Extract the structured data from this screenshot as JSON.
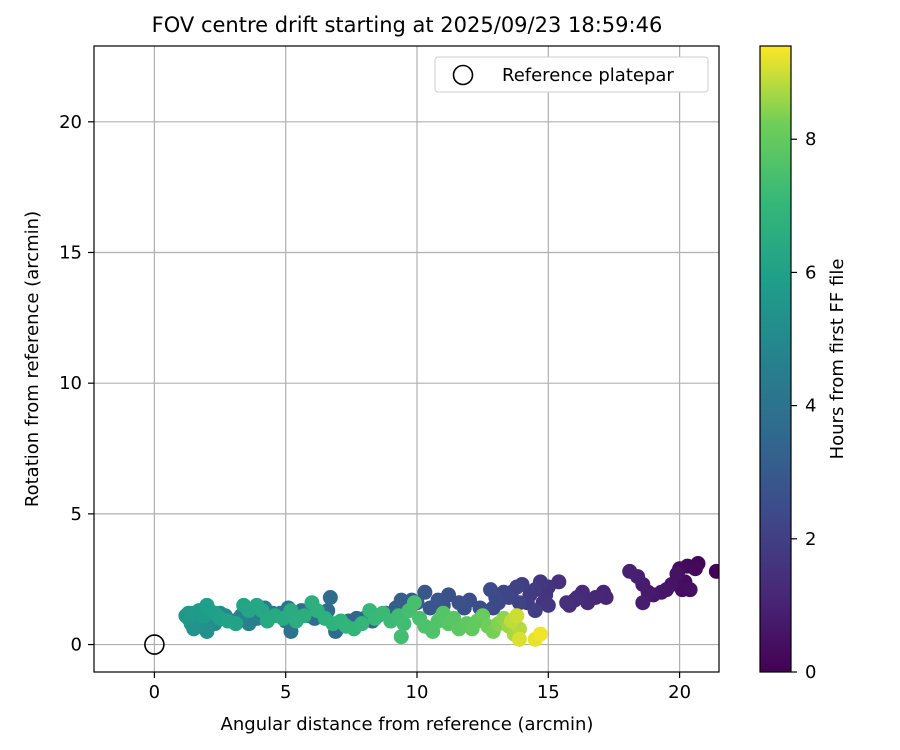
{
  "chart_data": {
    "type": "scatter",
    "title": "FOV centre drift starting at 2025/09/23 18:59:46",
    "xlabel": "Angular distance from reference (arcmin)",
    "ylabel": "Rotation from reference (arcmin)",
    "xlim": [
      -2.3,
      21.5
    ],
    "ylim": [
      -1.05,
      22.9
    ],
    "xticks": [
      "0",
      "5",
      "10",
      "15",
      "20"
    ],
    "yticks": [
      "0",
      "5",
      "10",
      "15",
      "20"
    ],
    "grid": true,
    "legend": {
      "position": "top-right",
      "entries": [
        "Reference platepar"
      ]
    },
    "reference_point": {
      "x": 0,
      "y": 0
    },
    "colorbar": {
      "label": "Hours from first FF file",
      "colormap": "viridis",
      "range": [
        0,
        9.4
      ],
      "ticks": [
        "0",
        "2",
        "4",
        "6",
        "8"
      ]
    },
    "points": [
      [
        21.4,
        2.8,
        0.05
      ],
      [
        20.7,
        3.1,
        0.15
      ],
      [
        20.6,
        2.9,
        0.2
      ],
      [
        20.3,
        3.0,
        0.25
      ],
      [
        20.0,
        2.9,
        0.3
      ],
      [
        20.2,
        2.4,
        0.35
      ],
      [
        20.1,
        2.1,
        0.4
      ],
      [
        20.4,
        2.1,
        0.45
      ],
      [
        19.9,
        2.7,
        0.5
      ],
      [
        19.7,
        2.3,
        0.55
      ],
      [
        19.5,
        2.1,
        0.6
      ],
      [
        19.3,
        2.0,
        0.65
      ],
      [
        19.0,
        1.9,
        0.7
      ],
      [
        18.8,
        2.0,
        0.75
      ],
      [
        18.6,
        2.3,
        0.8
      ],
      [
        18.6,
        1.6,
        0.85
      ],
      [
        18.4,
        2.6,
        0.9
      ],
      [
        18.1,
        2.8,
        0.95
      ],
      [
        17.1,
        2.0,
        1.05
      ],
      [
        17.2,
        1.8,
        1.1
      ],
      [
        16.8,
        1.8,
        1.15
      ],
      [
        16.5,
        1.6,
        1.2
      ],
      [
        16.3,
        2.0,
        1.25
      ],
      [
        16.1,
        1.8,
        1.3
      ],
      [
        16.0,
        1.7,
        1.35
      ],
      [
        15.8,
        1.5,
        1.4
      ],
      [
        15.7,
        1.6,
        1.45
      ],
      [
        15.4,
        2.4,
        1.5
      ],
      [
        15.0,
        2.2,
        1.55
      ],
      [
        14.9,
        1.9,
        1.6
      ],
      [
        14.8,
        1.6,
        1.65
      ],
      [
        15.0,
        1.5,
        1.7
      ],
      [
        14.7,
        2.4,
        1.75
      ],
      [
        14.5,
        2.1,
        1.8
      ],
      [
        14.3,
        1.9,
        1.85
      ],
      [
        14.2,
        1.6,
        1.9
      ],
      [
        14.5,
        1.3,
        1.95
      ],
      [
        14.0,
        2.3,
        2.0
      ],
      [
        13.8,
        2.2,
        2.05
      ],
      [
        13.6,
        2.0,
        2.1
      ],
      [
        13.9,
        1.6,
        2.15
      ],
      [
        13.5,
        1.8,
        2.2
      ],
      [
        13.3,
        2.0,
        2.25
      ],
      [
        13.1,
        1.6,
        2.3
      ],
      [
        12.9,
        1.4,
        2.35
      ],
      [
        13.0,
        1.8,
        2.4
      ],
      [
        12.8,
        2.1,
        2.45
      ],
      [
        12.4,
        1.4,
        2.5
      ],
      [
        12.0,
        1.7,
        2.55
      ],
      [
        11.8,
        1.4,
        2.6
      ],
      [
        11.6,
        1.6,
        2.65
      ],
      [
        11.2,
        1.9,
        2.7
      ],
      [
        11.0,
        1.5,
        2.75
      ],
      [
        10.8,
        1.7,
        2.8
      ],
      [
        10.5,
        1.4,
        2.85
      ],
      [
        10.3,
        2.0,
        2.9
      ],
      [
        10.0,
        1.6,
        2.95
      ],
      [
        9.8,
        1.7,
        3.0
      ],
      [
        9.6,
        1.5,
        3.05
      ],
      [
        9.4,
        1.7,
        3.1
      ],
      [
        9.2,
        1.4,
        3.15
      ],
      [
        8.8,
        1.2,
        3.25
      ],
      [
        8.5,
        1.1,
        3.3
      ],
      [
        8.3,
        0.9,
        3.35
      ],
      [
        8.0,
        1.0,
        3.4
      ],
      [
        7.7,
        1.0,
        3.45
      ],
      [
        7.4,
        0.9,
        3.5
      ],
      [
        7.1,
        0.7,
        3.55
      ],
      [
        6.9,
        0.5,
        3.6
      ],
      [
        6.6,
        1.3,
        3.65
      ],
      [
        6.7,
        1.8,
        3.7
      ],
      [
        6.4,
        1.2,
        3.75
      ],
      [
        6.1,
        1.0,
        3.8
      ],
      [
        5.9,
        1.1,
        3.85
      ],
      [
        5.6,
        1.3,
        3.9
      ],
      [
        5.4,
        1.0,
        3.95
      ],
      [
        5.2,
        0.5,
        4.0
      ],
      [
        5.0,
        0.9,
        4.05
      ],
      [
        5.1,
        1.4,
        4.1
      ],
      [
        4.8,
        1.2,
        4.2
      ],
      [
        4.5,
        1.2,
        4.3
      ],
      [
        4.2,
        1.4,
        4.4
      ],
      [
        3.9,
        1.0,
        4.5
      ],
      [
        3.6,
        0.8,
        4.6
      ],
      [
        3.3,
        1.1,
        4.7
      ],
      [
        3.0,
        0.9,
        4.8
      ],
      [
        2.7,
        1.1,
        4.9
      ],
      [
        2.5,
        1.2,
        5.0
      ],
      [
        2.3,
        0.8,
        5.1
      ],
      [
        2.1,
        1.0,
        5.2
      ],
      [
        2.0,
        0.5,
        5.3
      ],
      [
        1.8,
        0.7,
        5.35
      ],
      [
        1.6,
        0.9,
        5.4
      ],
      [
        1.5,
        0.6,
        5.45
      ],
      [
        1.4,
        0.8,
        5.5
      ],
      [
        1.3,
        1.0,
        5.55
      ],
      [
        1.2,
        1.1,
        5.6
      ],
      [
        1.3,
        1.2,
        5.65
      ],
      [
        1.5,
        1.2,
        5.7
      ],
      [
        1.7,
        1.3,
        5.75
      ],
      [
        1.9,
        1.1,
        5.8
      ],
      [
        2.1,
        1.3,
        5.85
      ],
      [
        2.0,
        1.5,
        5.9
      ],
      [
        2.3,
        1.2,
        5.95
      ],
      [
        2.5,
        1.0,
        6.0
      ],
      [
        2.8,
        0.9,
        6.05
      ],
      [
        3.1,
        0.8,
        6.1
      ],
      [
        3.4,
        1.5,
        6.15
      ],
      [
        3.6,
        1.3,
        6.2
      ],
      [
        3.9,
        1.5,
        6.25
      ],
      [
        4.1,
        1.3,
        6.3
      ],
      [
        4.3,
        0.9,
        6.35
      ],
      [
        4.6,
        1.1,
        6.4
      ],
      [
        4.9,
        1.0,
        6.45
      ],
      [
        5.2,
        1.3,
        6.5
      ],
      [
        5.4,
        0.9,
        6.55
      ],
      [
        5.7,
        1.1,
        6.6
      ],
      [
        6.0,
        1.6,
        6.65
      ],
      [
        6.2,
        1.3,
        6.7
      ],
      [
        6.5,
        1.0,
        6.75
      ],
      [
        6.8,
        0.8,
        6.8
      ],
      [
        7.1,
        0.9,
        6.85
      ],
      [
        7.3,
        0.7,
        6.9
      ],
      [
        7.6,
        0.6,
        6.95
      ],
      [
        7.9,
        0.8,
        7.0
      ],
      [
        8.2,
        1.3,
        7.05
      ],
      [
        8.4,
        1.0,
        7.1
      ],
      [
        8.7,
        1.2,
        7.15
      ],
      [
        9.0,
        0.9,
        7.2
      ],
      [
        9.3,
        1.1,
        7.25
      ],
      [
        9.5,
        0.8,
        7.3
      ],
      [
        9.4,
        0.3,
        7.35
      ],
      [
        9.7,
        1.3,
        7.4
      ],
      [
        9.9,
        1.6,
        7.45
      ],
      [
        10.1,
        1.0,
        7.5
      ],
      [
        10.3,
        0.7,
        7.55
      ],
      [
        10.6,
        0.5,
        7.6
      ],
      [
        10.8,
        0.9,
        7.65
      ],
      [
        11.0,
        1.2,
        7.7
      ],
      [
        11.2,
        0.8,
        7.75
      ],
      [
        11.4,
        1.0,
        7.8
      ],
      [
        11.6,
        0.6,
        7.85
      ],
      [
        11.9,
        0.8,
        7.9
      ],
      [
        12.1,
        0.6,
        7.95
      ],
      [
        12.3,
        0.9,
        8.0
      ],
      [
        12.5,
        1.1,
        8.1
      ],
      [
        12.7,
        0.7,
        8.2
      ],
      [
        12.9,
        0.5,
        8.3
      ],
      [
        13.1,
        0.8,
        8.4
      ],
      [
        13.3,
        1.0,
        8.5
      ],
      [
        13.5,
        0.7,
        8.6
      ],
      [
        13.7,
        0.4,
        8.7
      ],
      [
        13.9,
        0.6,
        8.8
      ],
      [
        13.6,
        0.9,
        8.9
      ],
      [
        13.8,
        1.1,
        9.0
      ],
      [
        13.9,
        0.2,
        9.1
      ],
      [
        14.5,
        0.2,
        9.2
      ],
      [
        14.7,
        0.4,
        9.3
      ]
    ]
  }
}
